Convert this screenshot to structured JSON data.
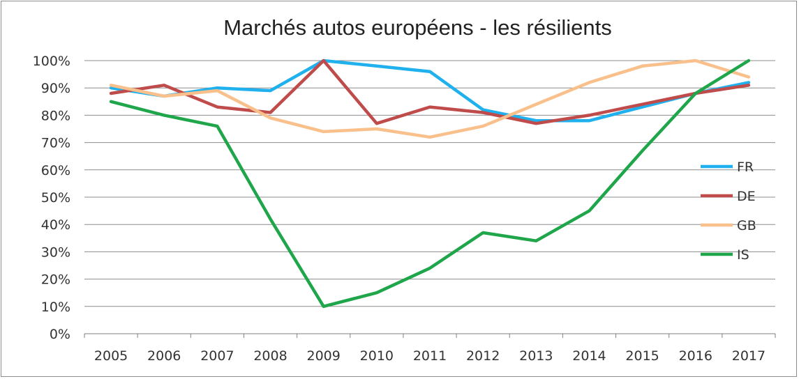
{
  "chart_data": {
    "type": "line",
    "title": "Marchés autos européens - les résilients",
    "x": [
      "2005",
      "2006",
      "2007",
      "2008",
      "2009",
      "2010",
      "2011",
      "2012",
      "2013",
      "2014",
      "2015",
      "2016",
      "2017"
    ],
    "y_ticks": [
      "0%",
      "10%",
      "20%",
      "30%",
      "40%",
      "50%",
      "60%",
      "70%",
      "80%",
      "90%",
      "100%"
    ],
    "ylim": [
      0,
      100
    ],
    "grid": "horizontal",
    "legend_position": "right",
    "series": [
      {
        "name": "FR",
        "color": "#1fb0ee",
        "values": [
          90,
          87,
          90,
          89,
          100,
          98,
          96,
          82,
          78,
          78,
          83,
          88,
          92
        ]
      },
      {
        "name": "DE",
        "color": "#bf4b4b",
        "values": [
          88,
          91,
          83,
          81,
          100,
          77,
          83,
          81,
          77,
          80,
          84,
          88,
          91
        ]
      },
      {
        "name": "GB",
        "color": "#f9c08c",
        "values": [
          91,
          87,
          89,
          79,
          74,
          75,
          72,
          76,
          84,
          92,
          98,
          100,
          94
        ]
      },
      {
        "name": "IS",
        "color": "#1fa64a",
        "values": [
          85,
          80,
          76,
          42,
          10,
          15,
          24,
          37,
          34,
          45,
          67,
          88,
          100
        ]
      }
    ]
  }
}
